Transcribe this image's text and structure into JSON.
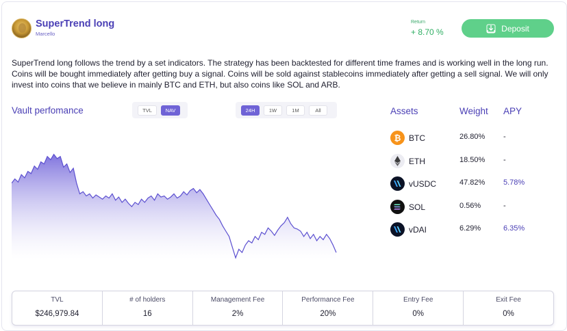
{
  "header": {
    "title": "SuperTrend long",
    "owner": "Marcello",
    "return_label": "Return",
    "return_value": "+ 8.70 %",
    "deposit_label": "Deposit"
  },
  "description": "SuperTrend long follows the trend by a set indicators. The strategy has been backtested for different time frames and is working well in the long run. Coins will be bought immediately after getting buy a signal. Coins will be sold against stablecoins immediately after getting a sell signal. We will only invest into coins that we believe in mainly BTC and ETH, but also coins like SOL and ARB.",
  "performance": {
    "title": "Vault perfomance",
    "metric_toggle": [
      {
        "label": "TVL",
        "active": false
      },
      {
        "label": "NAV",
        "active": true
      }
    ],
    "range_toggle": [
      {
        "label": "24H",
        "active": true
      },
      {
        "label": "1W",
        "active": false
      },
      {
        "label": "1M",
        "active": false
      },
      {
        "label": "All",
        "active": false
      }
    ]
  },
  "chart_data": {
    "type": "area",
    "series": [
      {
        "values": [
          0.7,
          0.74,
          0.71,
          0.78,
          0.75,
          0.81,
          0.79,
          0.86,
          0.83,
          0.9,
          0.88,
          0.95,
          0.92,
          0.97,
          0.93,
          0.95,
          0.85,
          0.88,
          0.8,
          0.84,
          0.7,
          0.6,
          0.62,
          0.58,
          0.6,
          0.56,
          0.59,
          0.57,
          0.55,
          0.58,
          0.56,
          0.6,
          0.54,
          0.57,
          0.52,
          0.55,
          0.51,
          0.48,
          0.52,
          0.5,
          0.55,
          0.52,
          0.56,
          0.58,
          0.54,
          0.6,
          0.57,
          0.58,
          0.55,
          0.57,
          0.6,
          0.56,
          0.58,
          0.62,
          0.59,
          0.63,
          0.65,
          0.61,
          0.64,
          0.6,
          0.55,
          0.5,
          0.45,
          0.4,
          0.36,
          0.3,
          0.25,
          0.2,
          0.1,
          0.0,
          0.08,
          0.05,
          0.12,
          0.16,
          0.14,
          0.2,
          0.17,
          0.24,
          0.22,
          0.28,
          0.25,
          0.21,
          0.26,
          0.3,
          0.33,
          0.38,
          0.32,
          0.28,
          0.27,
          0.25,
          0.2,
          0.24,
          0.18,
          0.22,
          0.16,
          0.2,
          0.17,
          0.22,
          0.18,
          0.12,
          0.05
        ]
      }
    ],
    "grid": false
  },
  "assets": {
    "headers": {
      "asset": "Assets",
      "weight": "Weight",
      "apy": "APY"
    },
    "rows": [
      {
        "name": "BTC",
        "weight": "26.80%",
        "apy": "-",
        "icon": "btc-icon",
        "color": "#f7931a",
        "highlight": false
      },
      {
        "name": "ETH",
        "weight": "18.50%",
        "apy": "-",
        "icon": "eth-icon",
        "color": "#ececf2",
        "highlight": false
      },
      {
        "name": "vUSDC",
        "weight": "47.82%",
        "apy": "5.78%",
        "icon": "vusdc-icon",
        "color": "#0b1226",
        "highlight": true
      },
      {
        "name": "SOL",
        "weight": "0.56%",
        "apy": "-",
        "icon": "sol-icon",
        "color": "#111111",
        "highlight": false
      },
      {
        "name": "vDAI",
        "weight": "6.29%",
        "apy": "6.35%",
        "icon": "vdai-icon",
        "color": "#0b1226",
        "highlight": true
      }
    ]
  },
  "stats": [
    {
      "label": "TVL",
      "value": "$246,979.84"
    },
    {
      "label": "# of holders",
      "value": "16"
    },
    {
      "label": "Management Fee",
      "value": "2%"
    },
    {
      "label": "Performance Fee",
      "value": "20%"
    },
    {
      "label": "Entry Fee",
      "value": "0%"
    },
    {
      "label": "Exit Fee",
      "value": "0%"
    }
  ],
  "colors": {
    "accent": "#4a3fb5",
    "chart_line": "#5b4fd0",
    "deposit": "#5fd08a",
    "return": "#2fae63"
  }
}
